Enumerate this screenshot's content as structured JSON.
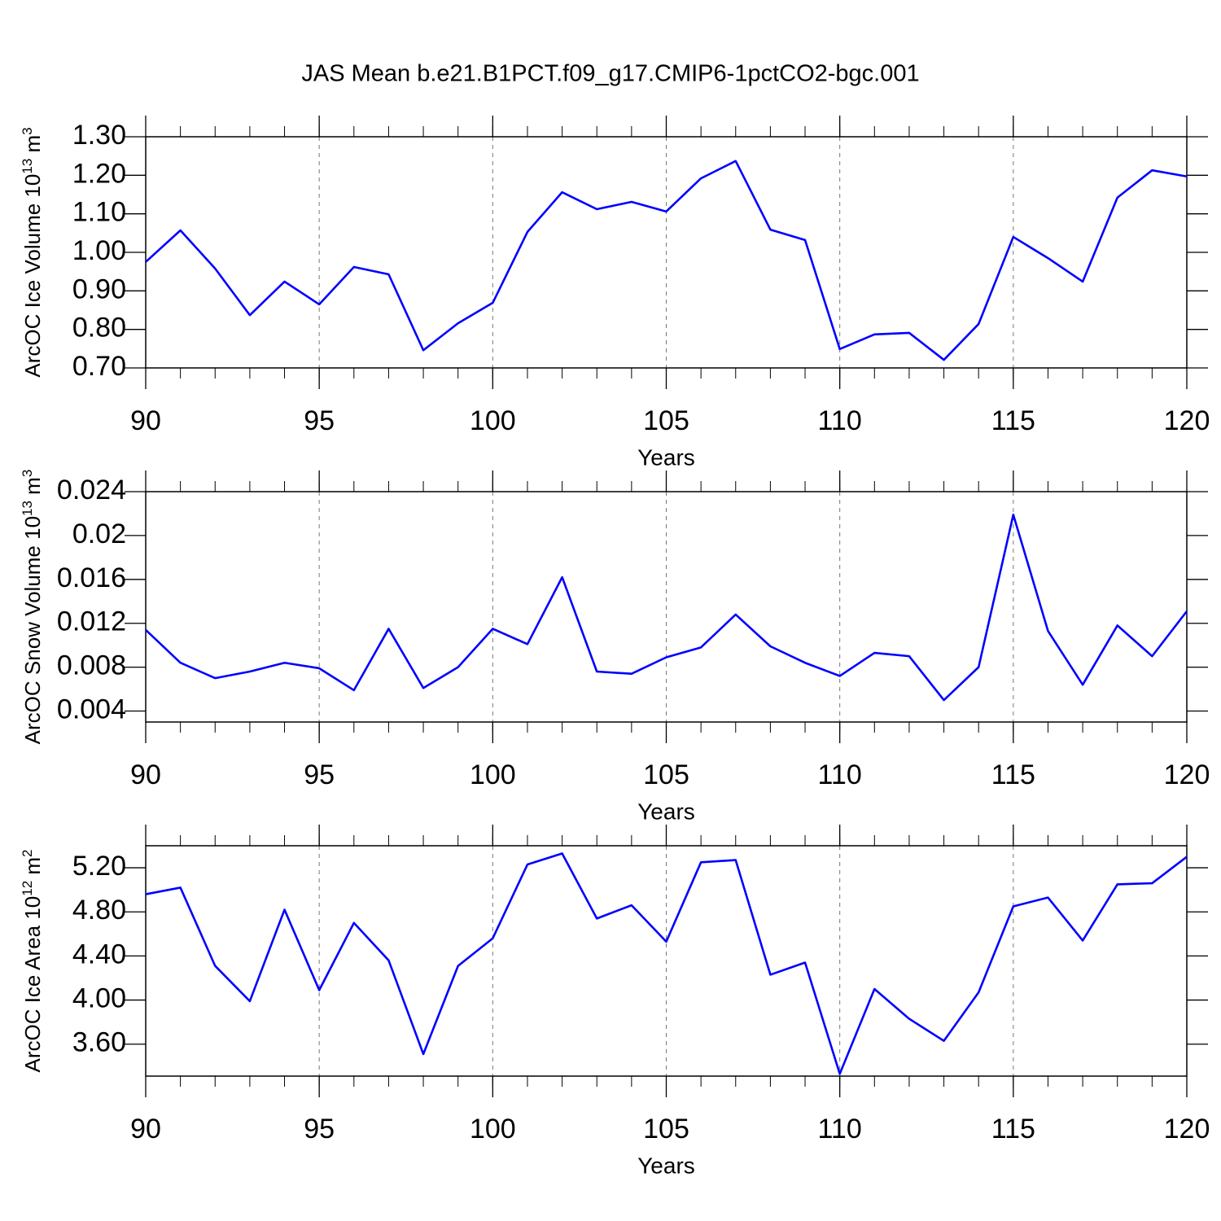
{
  "title": "JAS Mean b.e21.B1PCT.f09_g17.CMIP6-1pctCO2-bgc.001",
  "chart_data": [
    {
      "type": "line",
      "ylabel": [
        "ArcOC Ice Volume 10",
        "13",
        " m",
        "3"
      ],
      "xlabel": "Years",
      "x": [
        90,
        91,
        92,
        93,
        94,
        95,
        96,
        97,
        98,
        99,
        100,
        101,
        102,
        103,
        104,
        105,
        106,
        107,
        108,
        109,
        110,
        111,
        112,
        113,
        114,
        115,
        116,
        117,
        118,
        119,
        120
      ],
      "series": [
        {
          "color": "#0000ff",
          "values": [
            0.975,
            1.057,
            0.958,
            0.837,
            0.924,
            0.865,
            0.962,
            0.943,
            0.746,
            0.816,
            0.869,
            1.053,
            1.156,
            1.112,
            1.131,
            1.106,
            1.192,
            1.237,
            1.059,
            1.032,
            0.749,
            0.787,
            0.791,
            0.721,
            0.814,
            1.04,
            0.985,
            0.924,
            1.142,
            1.213,
            1.197
          ]
        }
      ],
      "xlim": [
        90,
        120
      ],
      "xticks": [
        90,
        95,
        100,
        105,
        110,
        115,
        120
      ],
      "ylim": [
        0.7,
        1.3
      ],
      "yticks": [
        {
          "value": 0.7,
          "label": "0.70"
        },
        {
          "value": 0.8,
          "label": "0.80"
        },
        {
          "value": 0.9,
          "label": "0.90"
        },
        {
          "value": 1.0,
          "label": "1.00"
        },
        {
          "value": 1.1,
          "label": "1.10"
        },
        {
          "value": 1.2,
          "label": "1.20"
        },
        {
          "value": 1.3,
          "label": "1.30"
        }
      ],
      "xgrid": true
    },
    {
      "type": "line",
      "ylabel": [
        "ArcOC Snow Volume 10",
        "13",
        " m",
        "3"
      ],
      "xlabel": "Years",
      "x": [
        90,
        91,
        92,
        93,
        94,
        95,
        96,
        97,
        98,
        99,
        100,
        101,
        102,
        103,
        104,
        105,
        106,
        107,
        108,
        109,
        110,
        111,
        112,
        113,
        114,
        115,
        116,
        117,
        118,
        119,
        120
      ],
      "series": [
        {
          "color": "#0000ff",
          "values": [
            0.0114,
            0.0084,
            0.007,
            0.0076,
            0.0084,
            0.0079,
            0.0059,
            0.0115,
            0.0061,
            0.008,
            0.0115,
            0.0101,
            0.0162,
            0.0076,
            0.0074,
            0.0089,
            0.0098,
            0.0128,
            0.0099,
            0.0084,
            0.0072,
            0.0093,
            0.009,
            0.005,
            0.008,
            0.0219,
            0.0113,
            0.0064,
            0.0118,
            0.009,
            0.0131
          ]
        }
      ],
      "xlim": [
        90,
        120
      ],
      "xticks": [
        90,
        95,
        100,
        105,
        110,
        115,
        120
      ],
      "ylim": [
        0.003,
        0.024
      ],
      "yticks": [
        0.004,
        0.008,
        0.012,
        0.016,
        0.02,
        0.024
      ],
      "xgrid": true
    },
    {
      "type": "line",
      "ylabel": [
        "ArcOC Ice Area 10",
        "12",
        " m",
        "2"
      ],
      "xlabel": "Years",
      "x": [
        90,
        91,
        92,
        93,
        94,
        95,
        96,
        97,
        98,
        99,
        100,
        101,
        102,
        103,
        104,
        105,
        106,
        107,
        108,
        109,
        110,
        111,
        112,
        113,
        114,
        115,
        116,
        117,
        118,
        119,
        120
      ],
      "series": [
        {
          "color": "#0000ff",
          "values": [
            4.96,
            5.02,
            4.31,
            3.99,
            4.82,
            4.09,
            4.7,
            4.36,
            3.51,
            4.31,
            4.56,
            5.23,
            5.33,
            4.74,
            4.86,
            4.53,
            5.25,
            5.27,
            4.23,
            4.34,
            3.33,
            4.1,
            3.83,
            3.63,
            4.07,
            4.85,
            4.93,
            4.54,
            5.05,
            5.06,
            5.3
          ]
        }
      ],
      "xlim": [
        90,
        120
      ],
      "xticks": [
        90,
        95,
        100,
        105,
        110,
        115,
        120
      ],
      "ylim": [
        3.31,
        5.4
      ],
      "yticks": [
        {
          "value": 3.6,
          "label": "3.60"
        },
        {
          "value": 4.0,
          "label": "4.00"
        },
        {
          "value": 4.4,
          "label": "4.40"
        },
        {
          "value": 4.8,
          "label": "4.80"
        },
        {
          "value": 5.2,
          "label": "5.20"
        }
      ],
      "xgrid": true
    }
  ]
}
